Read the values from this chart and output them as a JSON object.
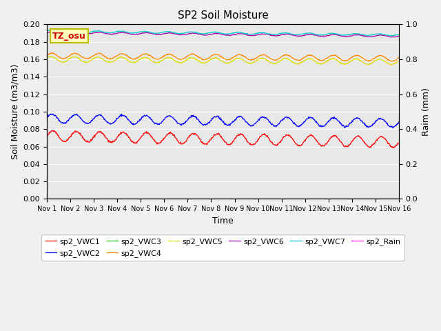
{
  "title": "SP2 Soil Moisture",
  "ylabel_left": "Soil Moisture (m3/m3)",
  "ylabel_right": "Raim (mm)",
  "xlabel": "Time",
  "ylim_left": [
    0.0,
    0.2
  ],
  "ylim_right": [
    0.0,
    1.0
  ],
  "yticks_left": [
    0.0,
    0.02,
    0.04,
    0.06,
    0.08,
    0.1,
    0.12,
    0.14,
    0.16,
    0.18,
    0.2
  ],
  "yticks_right": [
    0.0,
    0.2,
    0.4,
    0.6,
    0.8,
    1.0
  ],
  "tz_label": "TZ_osu",
  "n_days": 16,
  "series_order": [
    "sp2_VWC1",
    "sp2_VWC2",
    "sp2_VWC3",
    "sp2_VWC4",
    "sp2_VWC5",
    "sp2_VWC6",
    "sp2_VWC7",
    "sp2_Rain"
  ],
  "series": {
    "sp2_VWC1": {
      "color": "#ff0000",
      "base": 0.072,
      "amplitude": 0.006,
      "trend": -0.007,
      "noise": 0.0005,
      "freq": 1.0,
      "phase": 0.0
    },
    "sp2_VWC2": {
      "color": "#0000ff",
      "base": 0.092,
      "amplitude": 0.005,
      "trend": -0.005,
      "noise": 0.0005,
      "freq": 1.0,
      "phase": 0.2
    },
    "sp2_VWC3": {
      "color": "#00cc00",
      "base": 0.0005,
      "amplitude": 0.0,
      "trend": 0.0,
      "noise": 0.0,
      "freq": 1.0,
      "phase": 0.0
    },
    "sp2_VWC4": {
      "color": "#ff8800",
      "base": 0.164,
      "amplitude": 0.003,
      "trend": -0.003,
      "noise": 0.0003,
      "freq": 1.0,
      "phase": 0.3
    },
    "sp2_VWC5": {
      "color": "#dddd00",
      "base": 0.16,
      "amplitude": 0.003,
      "trend": -0.003,
      "noise": 0.0003,
      "freq": 1.0,
      "phase": 0.5
    },
    "sp2_VWC6": {
      "color": "#aa00aa",
      "base": 0.1905,
      "amplitude": 0.001,
      "trend": -0.004,
      "noise": 0.0002,
      "freq": 1.0,
      "phase": 0.1
    },
    "sp2_VWC7": {
      "color": "#00cccc",
      "base": 0.192,
      "amplitude": 0.001,
      "trend": -0.004,
      "noise": 0.0002,
      "freq": 1.0,
      "phase": 0.6
    },
    "sp2_Rain": {
      "color": "#ff00ff",
      "base": 0.0,
      "amplitude": 0.0,
      "trend": 0.0,
      "noise": 0.0,
      "freq": 1.0,
      "phase": 0.0
    }
  },
  "xtick_labels": [
    "Nov 1",
    "Nov 2",
    "Nov 3",
    "Nov 4",
    "Nov 5",
    "Nov 6",
    "Nov 7",
    "Nov 8",
    "Nov 9",
    "Nov 10",
    "Nov 11",
    "Nov 12",
    "Nov 13",
    "Nov 14",
    "Nov 15",
    "Nov 16"
  ],
  "bg_color": "#e8e8e8",
  "fig_bg": "#f0f0f0",
  "legend_order": [
    "sp2_VWC1",
    "sp2_VWC2",
    "sp2_VWC3",
    "sp2_VWC4",
    "sp2_VWC5",
    "sp2_VWC6",
    "sp2_VWC7",
    "sp2_Rain"
  ]
}
